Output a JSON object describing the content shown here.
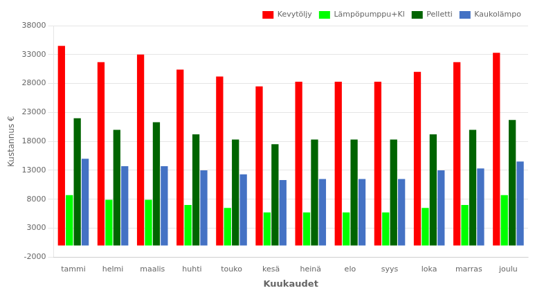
{
  "chart_data": {
    "type": "bar",
    "categories": [
      "tammi",
      "helmi",
      "maalis",
      "huhti",
      "touko",
      "kesä",
      "heinä",
      "elo",
      "syys",
      "loka",
      "marras",
      "joulu"
    ],
    "series": [
      {
        "name": "Kevytöljy",
        "color": "#FF0000",
        "values": [
          34500,
          31700,
          33000,
          30400,
          29200,
          27500,
          28300,
          28300,
          28300,
          30000,
          31700,
          33300
        ]
      },
      {
        "name": "Lämpöpumppu+Kl",
        "color": "#00FF00",
        "values": [
          8700,
          7900,
          7900,
          7000,
          6500,
          5700,
          5700,
          5700,
          5700,
          6500,
          7000,
          8700
        ]
      },
      {
        "name": "Pelletti",
        "color": "#006400",
        "values": [
          22000,
          20000,
          21300,
          19200,
          18300,
          17500,
          18300,
          18300,
          18300,
          19200,
          20000,
          21700
        ]
      },
      {
        "name": "Kaukolämpo",
        "color": "#4472C4",
        "values": [
          15000,
          13700,
          13700,
          13000,
          12300,
          11300,
          11500,
          11500,
          11500,
          13000,
          13300,
          14500
        ]
      }
    ],
    "xlabel": "Kuukaudet",
    "ylabel": "Kustannus €",
    "ylim": [
      -2000,
      38000
    ],
    "yticks": [
      -2000,
      3000,
      8000,
      13000,
      18000,
      23000,
      28000,
      33000,
      38000
    ],
    "grid": "y",
    "legend": "upper right"
  }
}
